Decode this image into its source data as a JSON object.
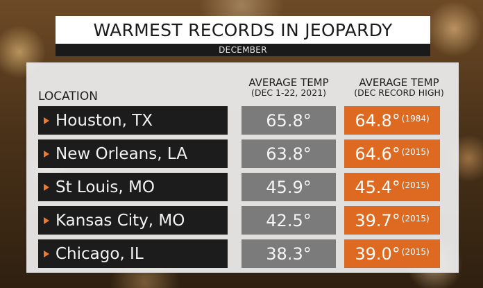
{
  "header": {
    "title": "WARMEST RECORDS IN JEOPARDY",
    "subtitle": "DECEMBER"
  },
  "columns": {
    "location": "LOCATION",
    "avg_temp": {
      "label": "AVERAGE TEMP",
      "sub": "(DEC 1-22, 2021)"
    },
    "record_high": {
      "label": "AVERAGE TEMP",
      "sub": "(DEC RECORD HIGH)"
    }
  },
  "rows": [
    {
      "location": "Houston, TX",
      "avg": "65.8°",
      "record": "64.8°",
      "year": "(1984)"
    },
    {
      "location": "New Orleans, LA",
      "avg": "63.8°",
      "record": "64.6°",
      "year": "(2015)"
    },
    {
      "location": "St Louis, MO",
      "avg": "45.9°",
      "record": "45.4°",
      "year": "(2015)"
    },
    {
      "location": "Kansas City, MO",
      "avg": "42.5°",
      "record": "39.7°",
      "year": "(2015)"
    },
    {
      "location": "Chicago, IL",
      "avg": "38.3°",
      "record": "39.0°",
      "year": "(2015)"
    }
  ],
  "colors": {
    "accent_orange": "#de6a22",
    "avg_gray": "#7b7b7b",
    "location_dark": "#1c1c1c"
  }
}
